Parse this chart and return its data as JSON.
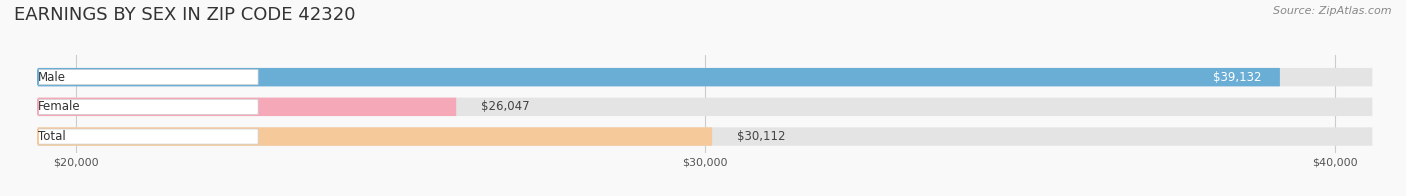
{
  "title": "EARNINGS BY SEX IN ZIP CODE 42320",
  "source": "Source: ZipAtlas.com",
  "categories": [
    "Male",
    "Female",
    "Total"
  ],
  "values": [
    39132,
    26047,
    30112
  ],
  "bar_colors": [
    "#6aaed6",
    "#f4a8b8",
    "#f5c99a"
  ],
  "label_colors": [
    "#ffffff",
    "#666666",
    "#666666"
  ],
  "xmin": 20000,
  "xmax": 40000,
  "xticks": [
    20000,
    30000,
    40000
  ],
  "xtick_labels": [
    "$20,000",
    "$30,000",
    "$40,000"
  ],
  "value_labels": [
    "$39,132",
    "$26,047",
    "$30,112"
  ],
  "figsize": [
    14.06,
    1.96
  ],
  "dpi": 100,
  "title_fontsize": 13,
  "bar_label_fontsize": 8.5,
  "axis_label_fontsize": 8,
  "source_fontsize": 8,
  "category_fontsize": 8.5,
  "background_color": "#f9f9f9",
  "bar_background_color": "#e4e4e4"
}
